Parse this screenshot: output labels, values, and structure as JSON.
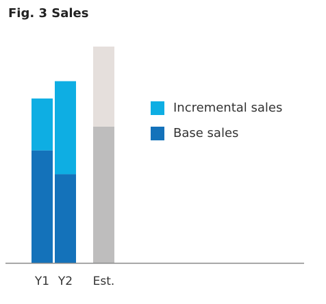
{
  "chart_data": {
    "type": "bar",
    "stacked": true,
    "title": "Fig. 3 Sales",
    "xlabel": "",
    "ylabel": "",
    "categories": [
      "Y1",
      "Y2",
      "Est."
    ],
    "series": [
      {
        "name": "Base sales",
        "values": [
          52,
          41,
          63
        ],
        "colors": [
          "#1472BA",
          "#1472BA",
          "#BEBDBD"
        ]
      },
      {
        "name": "Incremental sales",
        "values": [
          24,
          43,
          37
        ],
        "colors": [
          "#0EAEE3",
          "#0EAEE3",
          "#E5DFDC"
        ]
      }
    ],
    "ylim": [
      0,
      100
    ],
    "grid": false,
    "legend": {
      "position": "right",
      "items": [
        {
          "label": "Incremental sales",
          "color": "#0EAEE3"
        },
        {
          "label": "Base sales",
          "color": "#1472BA"
        }
      ]
    },
    "axis_color": "#888888"
  }
}
